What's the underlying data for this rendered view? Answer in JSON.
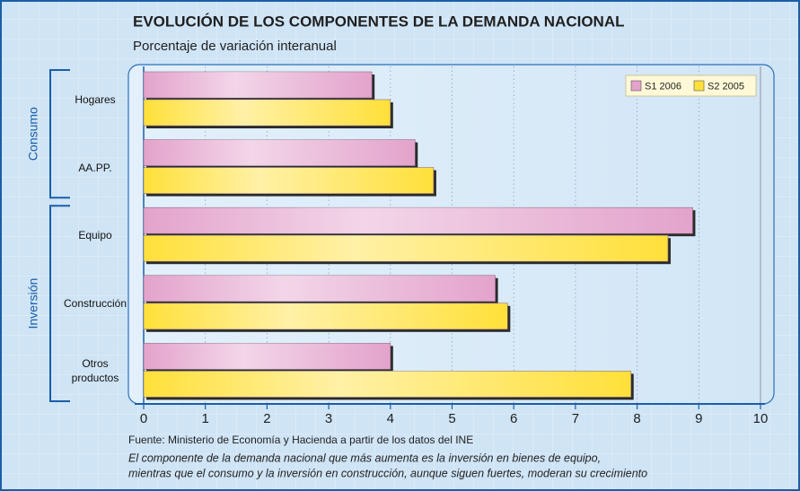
{
  "chart_data": {
    "type": "bar",
    "orientation": "horizontal",
    "title": "EVOLUCIÓN DE LOS COMPONENTES DE LA DEMANDA NACIONAL",
    "subtitle": "Porcentaje de variación interanual",
    "categories": [
      "Hogares",
      "AA.PP.",
      "Equipo",
      "Construcción",
      "Otros productos"
    ],
    "groups": [
      {
        "name": "Consumo",
        "members": [
          "Hogares",
          "AA.PP."
        ]
      },
      {
        "name": "Inversión",
        "members": [
          "Equipo",
          "Construcción",
          "Otros productos"
        ]
      }
    ],
    "series": [
      {
        "name": "S1 2006",
        "color": "#e3a3cc",
        "values": [
          3.7,
          4.4,
          8.9,
          5.7,
          4.0
        ]
      },
      {
        "name": "S2 2005",
        "color": "#ffe03a",
        "values": [
          4.0,
          4.7,
          8.5,
          5.9,
          7.9
        ]
      }
    ],
    "xlim": [
      0,
      10
    ],
    "xticks": [
      0,
      1,
      2,
      3,
      4,
      5,
      6,
      7,
      8,
      9,
      10
    ],
    "grid": true,
    "legend": "top-right",
    "source": "Fuente: Ministerio de Economía y Hacienda a partir de los datos del INE",
    "note": [
      "El componente de la demanda nacional que más aumenta es la inversión en bienes de equipo,",
      "mientras que el consumo y la inversión en construcción, aunque siguen fuertes, moderan su crecimiento"
    ]
  }
}
